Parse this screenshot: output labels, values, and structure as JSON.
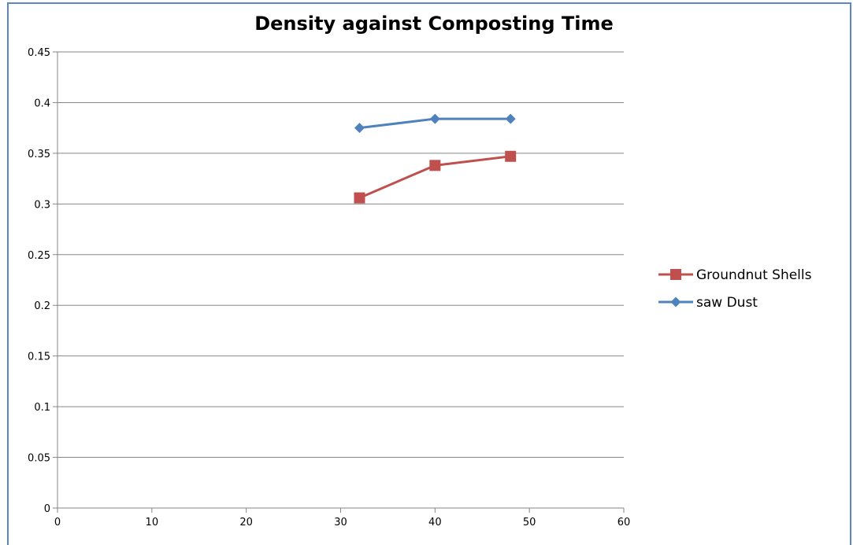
{
  "chart_data": {
    "type": "line",
    "title": "Density against Composting Time",
    "xlabel": "",
    "ylabel": "",
    "xlim": [
      0,
      60
    ],
    "ylim": [
      0,
      0.45
    ],
    "x_ticks": [
      0,
      10,
      20,
      30,
      40,
      50,
      60
    ],
    "y_ticks": [
      0,
      0.05,
      0.1,
      0.15,
      0.2,
      0.25,
      0.3,
      0.35,
      0.4,
      0.45
    ],
    "grid": "horizontal",
    "legend_position": "right",
    "series": [
      {
        "name": "Groundnut Shells",
        "color": "#c0504d",
        "marker": "square",
        "x": [
          32,
          40,
          48
        ],
        "y": [
          0.306,
          0.338,
          0.347
        ]
      },
      {
        "name": "saw Dust",
        "color": "#4f81bd",
        "marker": "diamond",
        "x": [
          32,
          40,
          48
        ],
        "y": [
          0.375,
          0.384,
          0.384
        ]
      }
    ]
  }
}
